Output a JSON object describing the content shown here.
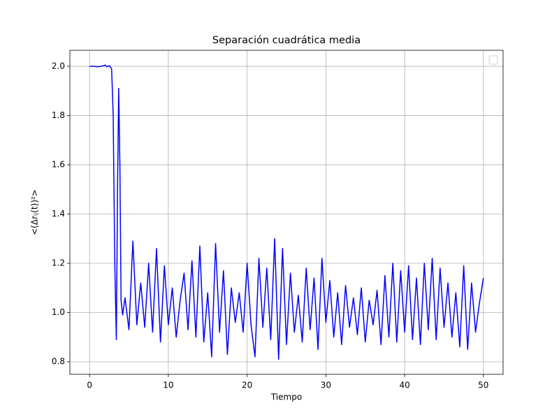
{
  "chart_data": {
    "type": "line",
    "title": "Separación cuadrática media",
    "xlabel": "Tiempo",
    "ylabel": "<(Δrᵢⱼ(t))²>",
    "x": [
      0,
      0.5,
      1,
      1.5,
      2,
      2.2,
      2.5,
      2.8,
      3.0,
      3.2,
      3.4,
      3.55,
      3.7,
      3.85,
      4.0,
      4.2,
      4.5,
      5,
      5.5,
      6,
      6.5,
      7,
      7.5,
      8,
      8.5,
      9,
      9.5,
      10,
      10.5,
      11,
      11.5,
      12,
      12.5,
      13,
      13.5,
      14,
      14.5,
      15,
      15.5,
      16,
      16.5,
      17,
      17.5,
      18,
      18.5,
      19,
      19.5,
      20,
      20.5,
      21,
      21.5,
      22,
      22.5,
      23,
      23.5,
      24,
      24.5,
      25,
      25.5,
      26,
      26.5,
      27,
      27.5,
      28,
      28.5,
      29,
      29.5,
      30,
      30.5,
      31,
      31.5,
      32,
      32.5,
      33,
      33.5,
      34,
      34.5,
      35,
      35.5,
      36,
      36.5,
      37,
      37.5,
      38,
      38.5,
      39,
      39.5,
      40,
      40.5,
      41,
      41.5,
      42,
      42.5,
      43,
      43.5,
      44,
      44.5,
      45,
      45.5,
      46,
      46.5,
      47,
      47.5,
      48,
      48.5,
      49,
      49.5,
      50
    ],
    "series": [
      {
        "color": "#0000ff",
        "values": [
          2.0,
          2.0,
          1.998,
          2.0,
          2.005,
          1.998,
          2.003,
          1.99,
          1.8,
          1.2,
          0.89,
          1.5,
          1.91,
          1.6,
          1.05,
          0.99,
          1.06,
          0.93,
          1.29,
          0.95,
          1.12,
          0.94,
          1.2,
          0.92,
          1.26,
          0.88,
          1.19,
          0.95,
          1.1,
          0.9,
          1.05,
          1.16,
          0.93,
          1.21,
          0.9,
          1.27,
          0.88,
          1.08,
          0.82,
          1.28,
          0.92,
          1.17,
          0.83,
          1.1,
          0.96,
          1.08,
          0.92,
          1.2,
          0.95,
          0.82,
          1.22,
          0.94,
          1.18,
          0.89,
          1.3,
          0.81,
          1.26,
          0.87,
          1.16,
          0.92,
          1.07,
          0.88,
          1.18,
          0.93,
          1.14,
          0.85,
          1.22,
          0.96,
          1.13,
          0.9,
          1.08,
          0.87,
          1.11,
          0.94,
          1.06,
          0.91,
          1.1,
          0.88,
          1.05,
          0.95,
          1.09,
          0.87,
          1.15,
          0.9,
          1.2,
          0.88,
          1.17,
          0.92,
          1.19,
          0.89,
          1.14,
          0.87,
          1.2,
          0.93,
          1.22,
          0.89,
          1.18,
          0.94,
          1.12,
          0.9,
          1.08,
          0.86,
          1.19,
          0.85,
          1.12,
          0.92,
          1.04,
          1.14
        ]
      }
    ],
    "xlim": [
      -2.5,
      52.5
    ],
    "ylim": [
      0.749,
      2.065
    ],
    "xticks": [
      0,
      10,
      20,
      30,
      40,
      50
    ],
    "yticks": [
      0.8,
      {
        "value": 1.0,
        "label": "1.0"
      },
      1.2,
      1.4,
      1.6,
      1.8,
      {
        "value": 2.0,
        "label": "2.0"
      }
    ],
    "grid": true,
    "legend": "upper right"
  }
}
